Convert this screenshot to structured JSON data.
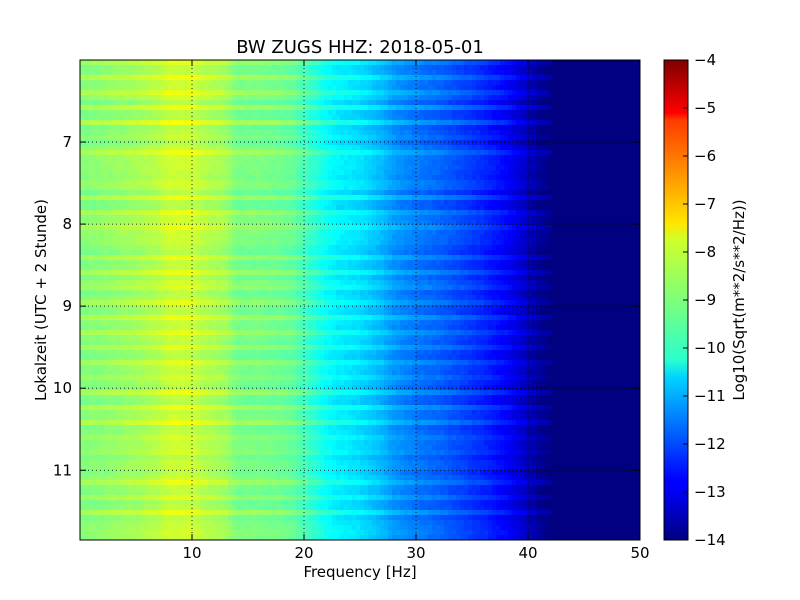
{
  "chart_data": {
    "type": "heatmap",
    "title": "BW ZUGS HHZ: 2018-05-01",
    "xlabel": "Frequency [Hz]",
    "ylabel": "Lokalzeit (UTC + 2 Stunde)",
    "xlim": [
      0,
      50
    ],
    "ylim": [
      6.0,
      11.85
    ],
    "y_inverted": true,
    "xticks": [
      10,
      20,
      30,
      40,
      50
    ],
    "yticks": [
      7,
      8,
      9,
      10,
      11
    ],
    "grid": true,
    "colormap": "jet",
    "colorbar": {
      "label": "Log10(Sqrt(m**2/s**2/Hz))",
      "range": [
        -14,
        -4
      ],
      "ticks": [
        -4,
        -5,
        -6,
        -7,
        -8,
        -9,
        -10,
        -11,
        -12,
        -13,
        -14
      ]
    },
    "frequency_profile": {
      "x": [
        0,
        2,
        5,
        7,
        8,
        9,
        10,
        11,
        12,
        13,
        13.5,
        14,
        16,
        18,
        19,
        20,
        21,
        22,
        23,
        24,
        25,
        26,
        27,
        28,
        30,
        32,
        34,
        36,
        37,
        38,
        39,
        40,
        41,
        42,
        50
      ],
      "values": [
        -9.0,
        -8.9,
        -8.7,
        -8.5,
        -8.3,
        -8.3,
        -8.3,
        -8.5,
        -8.6,
        -8.7,
        -8.9,
        -9.1,
        -9.1,
        -9.2,
        -9.3,
        -9.6,
        -9.9,
        -10.2,
        -10.4,
        -10.5,
        -10.6,
        -10.8,
        -11.0,
        -11.3,
        -11.6,
        -11.8,
        -12.1,
        -12.4,
        -12.6,
        -12.8,
        -13.1,
        -13.4,
        -13.8,
        -14.0,
        -14.0
      ]
    }
  }
}
